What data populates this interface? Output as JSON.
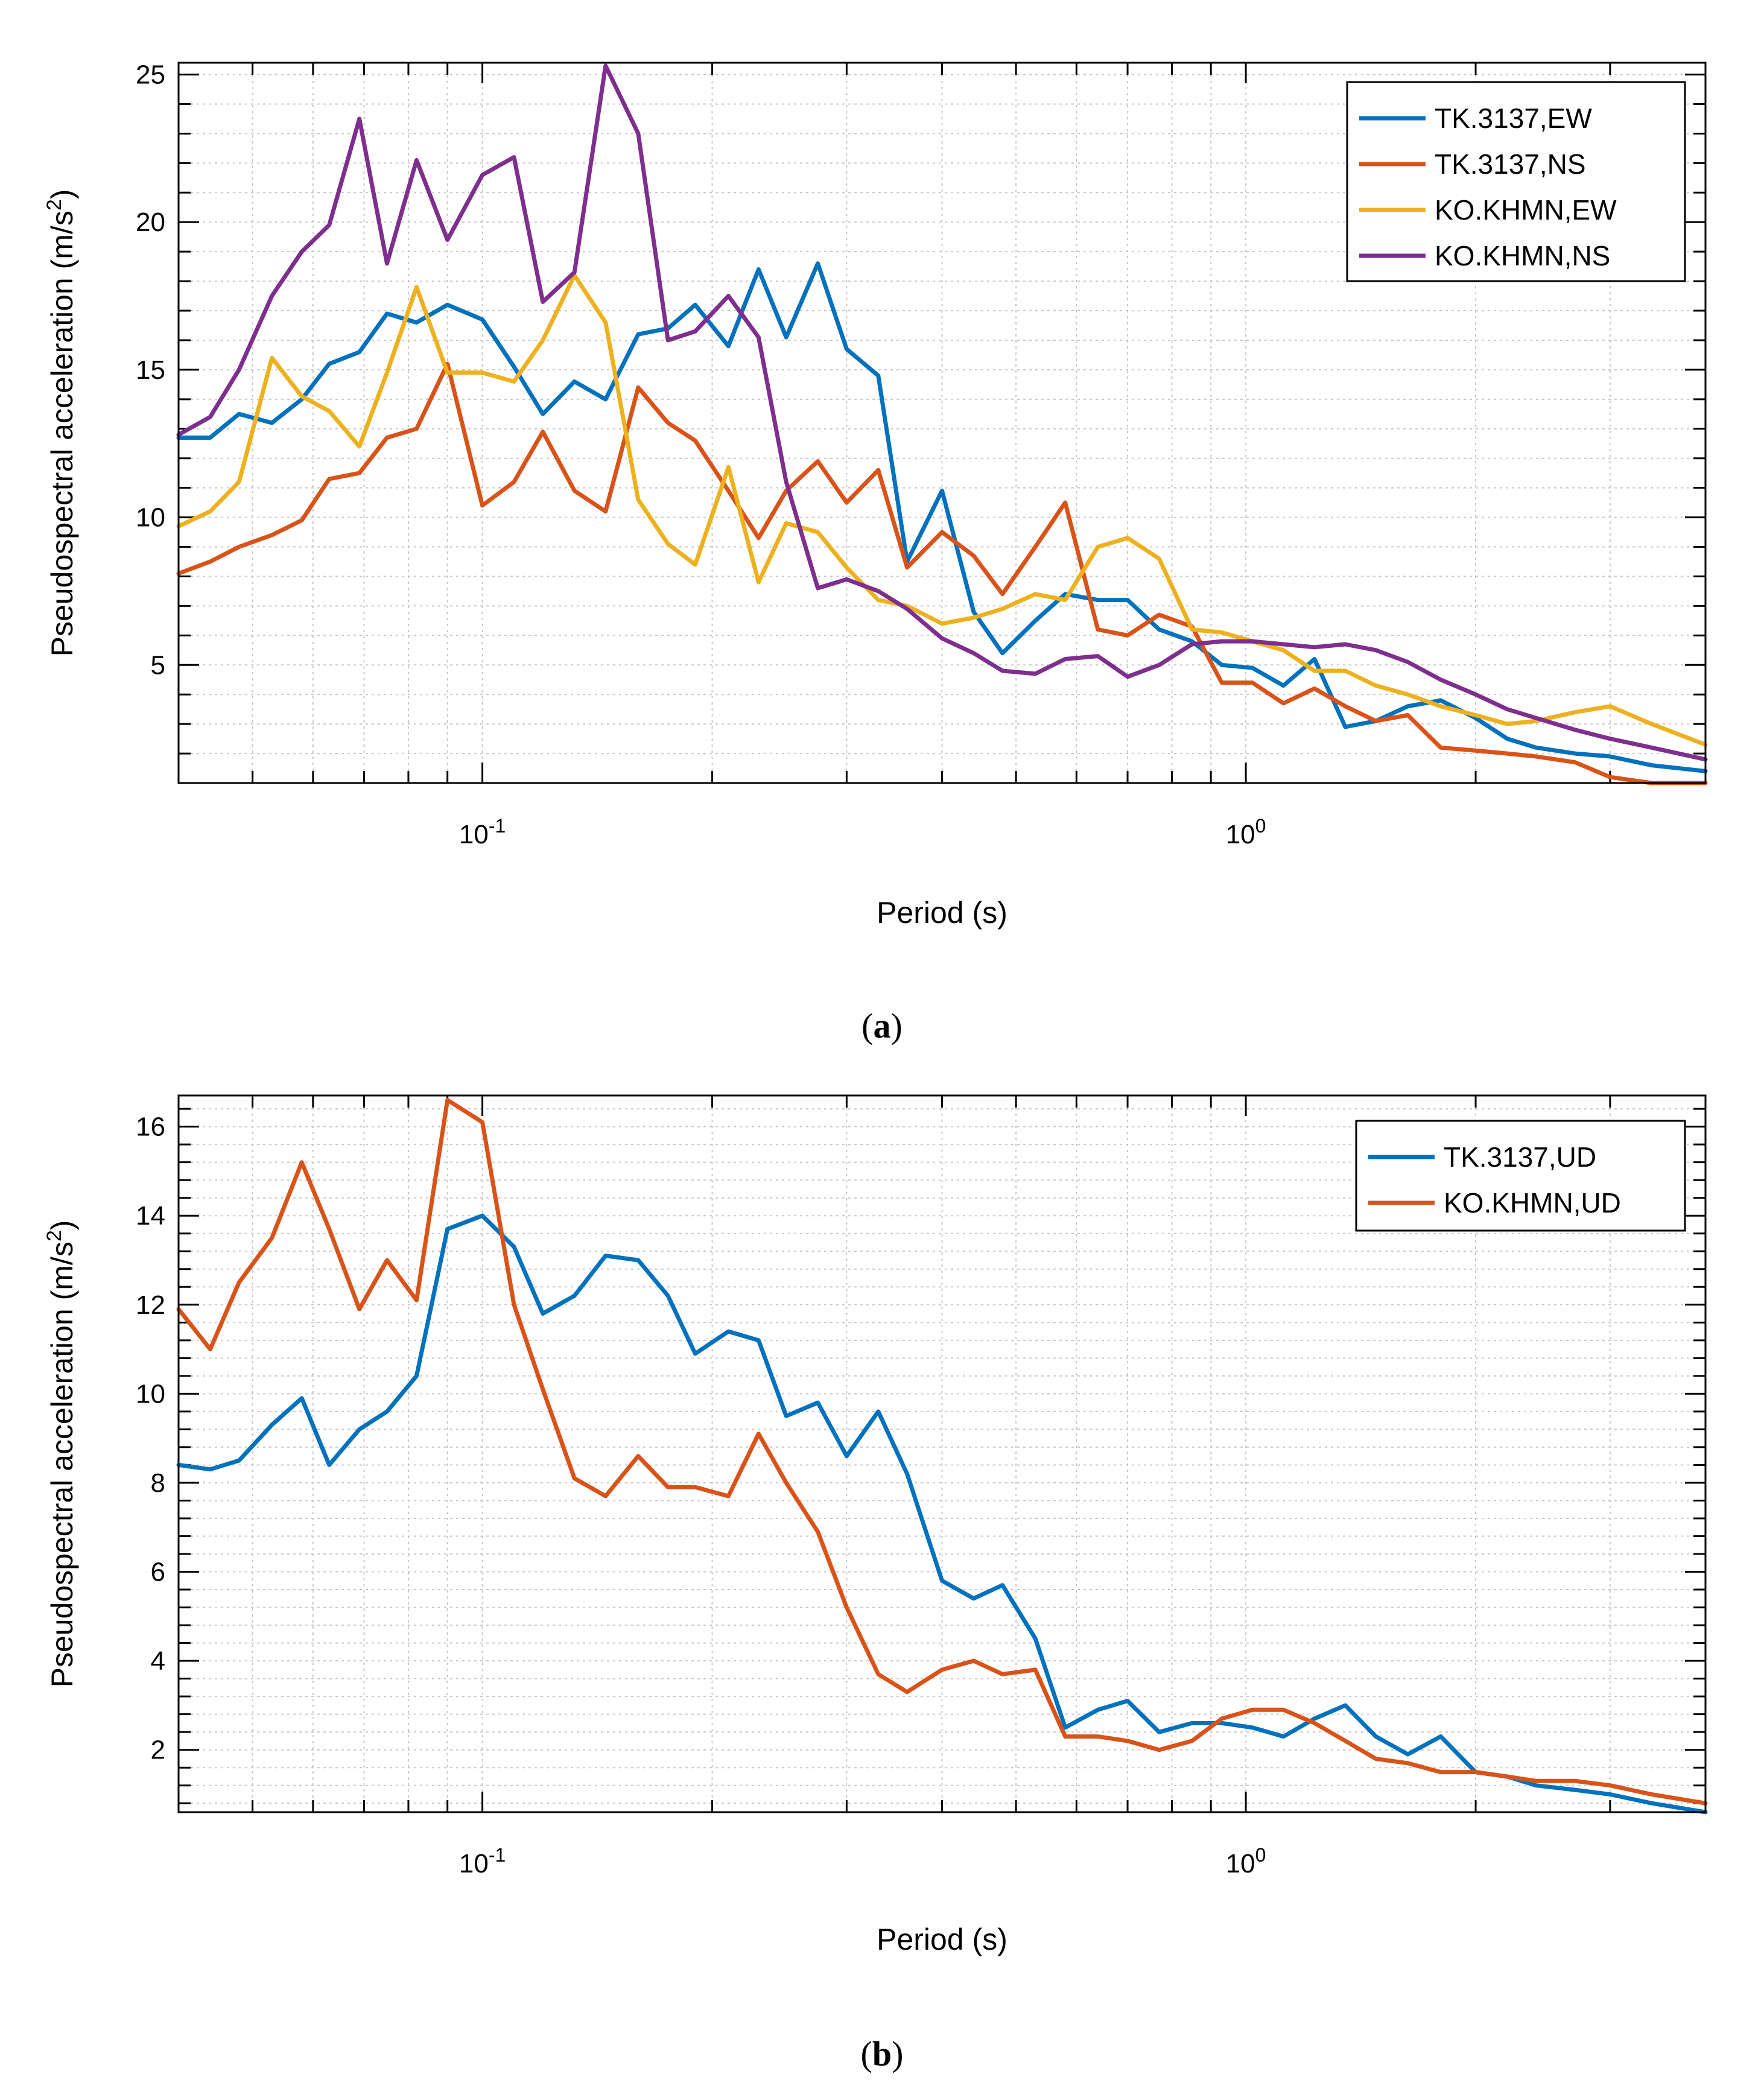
{
  "chart_data": [
    {
      "type": "line",
      "id": "a",
      "caption_letter": "a",
      "xlabel": "Period (s)",
      "ylabel_main": "Pseudospectral acceleration (m/s",
      "ylabel_sup": "2",
      "ylabel_close": ")",
      "xscale": "log",
      "xlim": [
        0.04,
        4.0
      ],
      "ylim": [
        1.0,
        25.4
      ],
      "yticks": [
        5,
        10,
        15,
        20,
        25
      ],
      "ytick_labels": [
        "5",
        "10",
        "15",
        "20",
        "25"
      ],
      "xticks_labeled": [
        0.1,
        1
      ],
      "xtick_base": [
        "10",
        "10"
      ],
      "xtick_exp": [
        "-1",
        "0"
      ],
      "legend_position": "top-right",
      "grid": true,
      "series": [
        {
          "name": "TK.3137,EW",
          "color": "#0072BD",
          "x": [
            0.04,
            0.044,
            0.048,
            0.053,
            0.058,
            0.063,
            0.069,
            0.075,
            0.082,
            0.09,
            0.1,
            0.11,
            0.12,
            0.132,
            0.145,
            0.16,
            0.175,
            0.19,
            0.21,
            0.23,
            0.25,
            0.275,
            0.3,
            0.33,
            0.36,
            0.4,
            0.44,
            0.48,
            0.53,
            0.58,
            0.64,
            0.7,
            0.77,
            0.85,
            0.93,
            1.02,
            1.12,
            1.23,
            1.35,
            1.48,
            1.63,
            1.8,
            2.0,
            2.2,
            2.4,
            2.7,
            3.0,
            3.4,
            4.0
          ],
          "y": [
            12.7,
            12.7,
            13.5,
            13.2,
            14.0,
            15.2,
            15.6,
            16.9,
            16.6,
            17.2,
            16.7,
            15.1,
            13.5,
            14.6,
            14.0,
            16.2,
            16.4,
            17.2,
            15.8,
            18.4,
            16.1,
            18.6,
            15.7,
            14.8,
            8.5,
            10.9,
            6.8,
            5.4,
            6.5,
            7.4,
            7.2,
            7.2,
            6.2,
            5.8,
            5.0,
            4.9,
            4.3,
            5.2,
            2.9,
            3.1,
            3.6,
            3.8,
            3.2,
            2.5,
            2.2,
            2.0,
            1.9,
            1.6,
            1.4
          ]
        },
        {
          "name": "TK.3137,NS",
          "color": "#D95319",
          "x": [
            0.04,
            0.044,
            0.048,
            0.053,
            0.058,
            0.063,
            0.069,
            0.075,
            0.082,
            0.09,
            0.1,
            0.11,
            0.12,
            0.132,
            0.145,
            0.16,
            0.175,
            0.19,
            0.21,
            0.23,
            0.25,
            0.275,
            0.3,
            0.33,
            0.36,
            0.4,
            0.44,
            0.48,
            0.53,
            0.58,
            0.64,
            0.7,
            0.77,
            0.85,
            0.93,
            1.02,
            1.12,
            1.23,
            1.35,
            1.48,
            1.63,
            1.8,
            2.0,
            2.2,
            2.4,
            2.7,
            3.0,
            3.4,
            4.0
          ],
          "y": [
            8.1,
            8.5,
            9.0,
            9.4,
            9.9,
            11.3,
            11.5,
            12.7,
            13.0,
            15.2,
            10.4,
            11.2,
            12.9,
            10.9,
            10.2,
            14.4,
            13.2,
            12.6,
            10.9,
            9.3,
            10.9,
            11.9,
            10.5,
            11.6,
            8.3,
            9.5,
            8.7,
            7.4,
            9.0,
            10.5,
            6.2,
            6.0,
            6.7,
            6.3,
            4.4,
            4.4,
            3.7,
            4.2,
            3.6,
            3.1,
            3.3,
            2.2,
            2.1,
            2.0,
            1.9,
            1.7,
            1.2,
            1.0,
            1.0
          ]
        },
        {
          "name": "KO.KHMN,EW",
          "color": "#EDB120",
          "x": [
            0.04,
            0.044,
            0.048,
            0.053,
            0.058,
            0.063,
            0.069,
            0.075,
            0.082,
            0.09,
            0.1,
            0.11,
            0.12,
            0.132,
            0.145,
            0.16,
            0.175,
            0.19,
            0.21,
            0.23,
            0.25,
            0.275,
            0.3,
            0.33,
            0.36,
            0.4,
            0.44,
            0.48,
            0.53,
            0.58,
            0.64,
            0.7,
            0.77,
            0.85,
            0.93,
            1.02,
            1.12,
            1.23,
            1.35,
            1.48,
            1.63,
            1.8,
            2.0,
            2.2,
            2.4,
            2.7,
            3.0,
            3.4,
            4.0
          ],
          "y": [
            9.7,
            10.2,
            11.2,
            15.4,
            14.1,
            13.6,
            12.4,
            14.9,
            17.8,
            14.9,
            14.9,
            14.6,
            16.0,
            18.2,
            16.6,
            10.6,
            9.1,
            8.4,
            11.7,
            7.8,
            9.8,
            9.5,
            8.3,
            7.2,
            7.0,
            6.4,
            6.6,
            6.9,
            7.4,
            7.2,
            9.0,
            9.3,
            8.6,
            6.2,
            6.1,
            5.8,
            5.5,
            4.8,
            4.8,
            4.3,
            4.0,
            3.6,
            3.3,
            3.0,
            3.1,
            3.4,
            3.6,
            3.0,
            2.3
          ]
        },
        {
          "name": "KO.KHMN,NS",
          "color": "#7E2F8E",
          "x": [
            0.04,
            0.044,
            0.048,
            0.053,
            0.058,
            0.063,
            0.069,
            0.075,
            0.082,
            0.09,
            0.1,
            0.11,
            0.12,
            0.132,
            0.145,
            0.16,
            0.175,
            0.19,
            0.21,
            0.23,
            0.25,
            0.275,
            0.3,
            0.33,
            0.36,
            0.4,
            0.44,
            0.48,
            0.53,
            0.58,
            0.64,
            0.7,
            0.77,
            0.85,
            0.93,
            1.02,
            1.12,
            1.23,
            1.35,
            1.48,
            1.63,
            1.8,
            2.0,
            2.2,
            2.4,
            2.7,
            3.0,
            3.4,
            4.0
          ],
          "y": [
            12.8,
            13.4,
            15.0,
            17.5,
            19.0,
            19.9,
            23.5,
            18.6,
            22.1,
            19.4,
            21.6,
            22.2,
            17.3,
            18.3,
            25.3,
            23.0,
            16.0,
            16.3,
            17.5,
            16.1,
            11.2,
            7.6,
            7.9,
            7.5,
            6.9,
            5.9,
            5.4,
            4.8,
            4.7,
            5.2,
            5.3,
            4.6,
            5.0,
            5.7,
            5.8,
            5.8,
            5.7,
            5.6,
            5.7,
            5.5,
            5.1,
            4.5,
            4.0,
            3.5,
            3.2,
            2.8,
            2.5,
            2.2,
            1.8
          ]
        }
      ]
    },
    {
      "type": "line",
      "id": "b",
      "caption_letter": "b",
      "xlabel": "Period (s)",
      "ylabel_main": "Pseudospectral acceleration (m/s",
      "ylabel_sup": "2",
      "ylabel_close": ")",
      "xscale": "log",
      "xlim": [
        0.04,
        4.0
      ],
      "ylim": [
        0.6,
        16.7
      ],
      "yticks": [
        2,
        4,
        6,
        8,
        10,
        12,
        14,
        16
      ],
      "ytick_labels": [
        "2",
        "4",
        "6",
        "8",
        "10",
        "12",
        "14",
        "16"
      ],
      "xticks_labeled": [
        0.1,
        1
      ],
      "xtick_base": [
        "10",
        "10"
      ],
      "xtick_exp": [
        "-1",
        "0"
      ],
      "legend_position": "top-right",
      "grid": true,
      "series": [
        {
          "name": "TK.3137,UD",
          "color": "#0072BD",
          "x": [
            0.04,
            0.044,
            0.048,
            0.053,
            0.058,
            0.063,
            0.069,
            0.075,
            0.082,
            0.09,
            0.1,
            0.11,
            0.12,
            0.132,
            0.145,
            0.16,
            0.175,
            0.19,
            0.21,
            0.23,
            0.25,
            0.275,
            0.3,
            0.33,
            0.36,
            0.4,
            0.44,
            0.48,
            0.53,
            0.58,
            0.64,
            0.7,
            0.77,
            0.85,
            0.93,
            1.02,
            1.12,
            1.23,
            1.35,
            1.48,
            1.63,
            1.8,
            2.0,
            2.2,
            2.4,
            2.7,
            3.0,
            3.4,
            4.0
          ],
          "y": [
            8.4,
            8.3,
            8.5,
            9.3,
            9.9,
            8.4,
            9.2,
            9.6,
            10.4,
            13.7,
            14.0,
            13.3,
            11.8,
            12.2,
            13.1,
            13.0,
            12.2,
            10.9,
            11.4,
            11.2,
            9.5,
            9.8,
            8.6,
            9.6,
            8.2,
            5.8,
            5.4,
            5.7,
            4.5,
            2.5,
            2.9,
            3.1,
            2.4,
            2.6,
            2.6,
            2.5,
            2.3,
            2.7,
            3.0,
            2.3,
            1.9,
            2.3,
            1.5,
            1.4,
            1.2,
            1.1,
            1.0,
            0.8,
            0.6
          ]
        },
        {
          "name": "KO.KHMN,UD",
          "color": "#D95319",
          "x": [
            0.04,
            0.044,
            0.048,
            0.053,
            0.058,
            0.063,
            0.069,
            0.075,
            0.082,
            0.09,
            0.1,
            0.11,
            0.12,
            0.132,
            0.145,
            0.16,
            0.175,
            0.19,
            0.21,
            0.23,
            0.25,
            0.275,
            0.3,
            0.33,
            0.36,
            0.4,
            0.44,
            0.48,
            0.53,
            0.58,
            0.64,
            0.7,
            0.77,
            0.85,
            0.93,
            1.02,
            1.12,
            1.23,
            1.35,
            1.48,
            1.63,
            1.8,
            2.0,
            2.2,
            2.4,
            2.7,
            3.0,
            3.4,
            4.0
          ],
          "y": [
            11.9,
            11.0,
            12.5,
            13.5,
            15.2,
            13.7,
            11.9,
            13.0,
            12.1,
            16.6,
            16.1,
            12.0,
            10.1,
            8.1,
            7.7,
            8.6,
            7.9,
            7.9,
            7.7,
            9.1,
            8.0,
            6.9,
            5.2,
            3.7,
            3.3,
            3.8,
            4.0,
            3.7,
            3.8,
            2.3,
            2.3,
            2.2,
            2.0,
            2.2,
            2.7,
            2.9,
            2.9,
            2.6,
            2.2,
            1.8,
            1.7,
            1.5,
            1.5,
            1.4,
            1.3,
            1.3,
            1.2,
            1.0,
            0.8
          ]
        }
      ]
    }
  ]
}
